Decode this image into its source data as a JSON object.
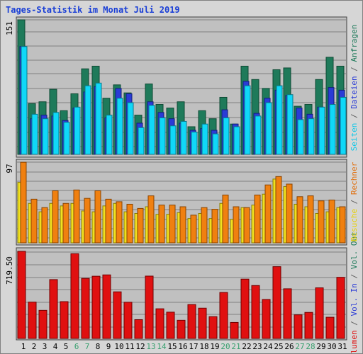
{
  "title": "Tages-Statistik im Monat Juli 2019",
  "chart_data": [
    {
      "type": "bar",
      "panel": "top",
      "y_max_label": "151",
      "ylim": [
        0,
        151
      ],
      "grid": true,
      "x": [
        1,
        2,
        3,
        4,
        5,
        6,
        7,
        8,
        9,
        10,
        11,
        12,
        13,
        14,
        15,
        16,
        17,
        18,
        19,
        20,
        21,
        22,
        23,
        24,
        25,
        26,
        27,
        28,
        29,
        30,
        31
      ],
      "series": [
        {
          "name": "Anfragen",
          "color": "#1e7a5a",
          "values": [
            151,
            57,
            59,
            73,
            49,
            68,
            96,
            99,
            63,
            78,
            69,
            44,
            79,
            56,
            52,
            59,
            31,
            49,
            40,
            64,
            34,
            99,
            84,
            74,
            95,
            97,
            54,
            56,
            84,
            109,
            99
          ]
        },
        {
          "name": "Dateien",
          "color": "#2a3bd6",
          "values": [
            121,
            40,
            44,
            43,
            38,
            52,
            70,
            76,
            41,
            74,
            68,
            35,
            59,
            47,
            40,
            35,
            27,
            29,
            27,
            50,
            34,
            82,
            46,
            63,
            72,
            66,
            52,
            45,
            53,
            75,
            72
          ]
        },
        {
          "name": "Seiten",
          "color": "#10d8f8",
          "values": [
            121,
            45,
            40,
            47,
            36,
            53,
            77,
            80,
            44,
            63,
            58,
            30,
            55,
            41,
            32,
            37,
            25,
            34,
            23,
            41,
            31,
            77,
            43,
            58,
            77,
            67,
            39,
            40,
            53,
            56,
            64
          ]
        }
      ],
      "legend_labels": [
        "Anfragen",
        "Dateien",
        "Seiten"
      ]
    },
    {
      "type": "bar",
      "panel": "middle",
      "y_max_label": "97",
      "ylim": [
        0,
        97
      ],
      "grid": true,
      "x": [
        1,
        2,
        3,
        4,
        5,
        6,
        7,
        8,
        9,
        10,
        11,
        12,
        13,
        14,
        15,
        16,
        17,
        18,
        19,
        20,
        21,
        22,
        23,
        24,
        25,
        26,
        27,
        28,
        29,
        30,
        31
      ],
      "series": [
        {
          "name": "Besuche",
          "color": "#f0e020",
          "values": [
            72,
            47,
            37,
            47,
            44,
            47,
            38,
            37,
            44,
            47,
            37,
            35,
            43,
            34,
            34,
            36,
            29,
            35,
            29,
            47,
            28,
            42,
            45,
            58,
            76,
            67,
            46,
            43,
            35,
            37,
            42
          ]
        },
        {
          "name": "Rechner",
          "color": "#f08010",
          "values": [
            96,
            52,
            42,
            62,
            47,
            63,
            53,
            62,
            52,
            49,
            46,
            41,
            56,
            45,
            45,
            43,
            33,
            42,
            40,
            57,
            43,
            42,
            57,
            69,
            79,
            70,
            55,
            56,
            50,
            51,
            43
          ]
        }
      ],
      "legend_labels": [
        "Besuche",
        "Rechner"
      ]
    },
    {
      "type": "bar",
      "panel": "bottom",
      "y_max_label": "719.50",
      "ylim": [
        0,
        719.5
      ],
      "grid": true,
      "x": [
        1,
        2,
        3,
        4,
        5,
        6,
        7,
        8,
        9,
        10,
        11,
        12,
        13,
        14,
        15,
        16,
        17,
        18,
        19,
        20,
        21,
        22,
        23,
        24,
        25,
        26,
        27,
        28,
        29,
        30,
        31
      ],
      "series": [
        {
          "name": "Vol. In",
          "color": "#e01010",
          "values": [
            719.5,
            300,
            232,
            486,
            304,
            700,
            496,
            514,
            525,
            385,
            299,
            155,
            515,
            245,
            217,
            150,
            280,
            250,
            180,
            380,
            132,
            490,
            437,
            322,
            593,
            410,
            195,
            215,
            418,
            175,
            505
          ]
        }
      ],
      "legend_labels": [
        "Volumen",
        "Vol. In",
        "Vol. Out"
      ]
    }
  ],
  "x_tick_labels": [
    "1",
    "2",
    "3",
    "4",
    "5",
    "6",
    "7",
    "8",
    "9",
    "10",
    "11",
    "12",
    "13",
    "14",
    "15",
    "16",
    "17",
    "18",
    "19",
    "20",
    "21",
    "22",
    "23",
    "24",
    "25",
    "26",
    "27",
    "28",
    "29",
    "30",
    "31"
  ],
  "weekend_days": [
    6,
    7,
    13,
    14,
    20,
    21,
    27,
    28
  ],
  "colors": {
    "title": "#1a3fd6",
    "axis_text": "#000000",
    "weekend_text": "#3aa070",
    "plot_bg": "#c0c0c0",
    "grid": "#808080",
    "label_anfragen": "#1e7a5a",
    "label_dateien": "#2a3bd6",
    "label_seiten": "#10c8e8",
    "label_besuche": "#e8d000",
    "label_rechner": "#e07010",
    "label_volumen": "#e01010",
    "label_volin": "#2a3bd6",
    "label_volout": "#1e7a5a",
    "label_sep": "#606060"
  }
}
